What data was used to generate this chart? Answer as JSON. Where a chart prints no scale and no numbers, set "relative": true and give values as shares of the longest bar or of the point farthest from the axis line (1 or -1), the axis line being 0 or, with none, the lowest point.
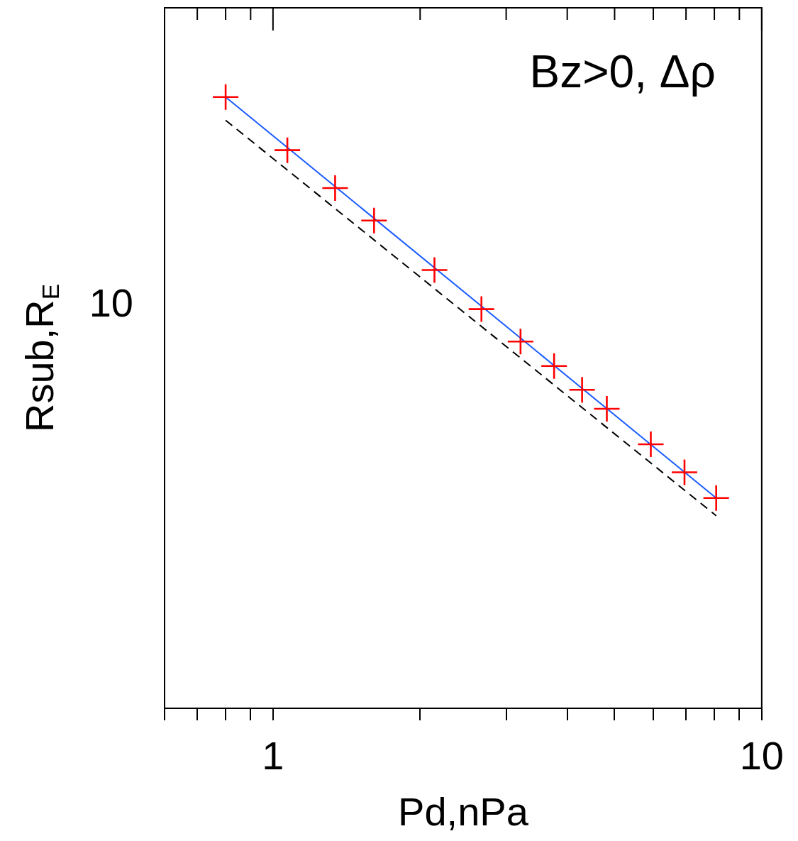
{
  "chart_data": {
    "type": "scatter",
    "xlabel": "Pd,nPa",
    "ylabel": "Rsub,R$_{E}$",
    "annotations": [
      "Bz>0, Δρ",
      "10"
    ],
    "log": "x",
    "relative": true,
    "xlim": [
      0.6,
      10
    ],
    "xticks": [
      {
        "value": 0.6,
        "label": null
      },
      {
        "value": 0.7,
        "label": null
      },
      {
        "value": 0.8,
        "label": null
      },
      {
        "value": 0.9,
        "label": null
      },
      1,
      {
        "value": 2,
        "label": null
      },
      {
        "value": 3,
        "label": null
      },
      {
        "value": 4,
        "label": null
      },
      {
        "value": 5,
        "label": null
      },
      {
        "value": 6,
        "label": null
      },
      {
        "value": 7,
        "label": null
      },
      {
        "value": 8,
        "label": null
      },
      {
        "value": 9,
        "label": null
      },
      10
    ],
    "series": [
      {
        "type": "line",
        "color": "#1a5cff",
        "line_style": "solid",
        "marker": "none",
        "x": [
          0.8,
          8.07
        ],
        "values": [
          1,
          0.344
        ]
      },
      {
        "type": "line",
        "color": "#000000",
        "line_style": "dashed",
        "marker": "none",
        "x": [
          0.8,
          8.07
        ],
        "values": [
          0.962,
          0.315
        ]
      },
      {
        "color": "#ff0000",
        "marker": "cross",
        "x": [
          0.8,
          1.07,
          1.34,
          1.61,
          2.14,
          2.67,
          3.21,
          3.76,
          4.29,
          4.82,
          5.93,
          6.95,
          8.07
        ],
        "values": [
          1,
          0.913,
          0.851,
          0.798,
          0.717,
          0.653,
          0.6,
          0.56,
          0.521,
          0.49,
          0.432,
          0.386,
          0.344
        ]
      }
    ]
  }
}
